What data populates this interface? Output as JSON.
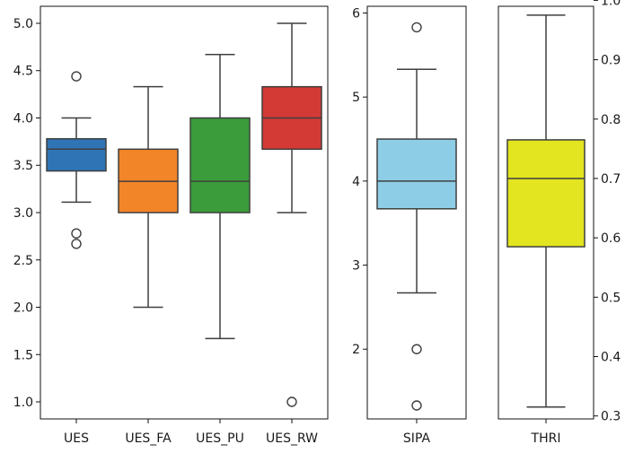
{
  "chart_data": [
    {
      "type": "boxplot",
      "id": "ues",
      "ylim": [
        0.82,
        5.18
      ],
      "yticks": [
        "1.0",
        "1.5",
        "2.0",
        "2.5",
        "3.0",
        "3.5",
        "4.0",
        "4.5",
        "5.0"
      ],
      "ytick_values": [
        1.0,
        1.5,
        2.0,
        2.5,
        3.0,
        3.5,
        4.0,
        4.5,
        5.0
      ],
      "yaxis_side": "left",
      "categories": [
        "UES",
        "UES_FA",
        "UES_PU",
        "UES_RW"
      ],
      "series": [
        {
          "name": "UES",
          "color": "#2f75b5",
          "whisker_low": 3.11,
          "q1": 3.44,
          "median": 3.67,
          "q3": 3.78,
          "whisker_high": 4.0,
          "fliers": [
            4.44,
            2.78,
            2.67
          ]
        },
        {
          "name": "UES_FA",
          "color": "#f28527",
          "whisker_low": 2.0,
          "q1": 3.0,
          "median": 3.33,
          "q3": 3.67,
          "whisker_high": 4.33,
          "fliers": []
        },
        {
          "name": "UES_PU",
          "color": "#3a9c3a",
          "whisker_low": 1.67,
          "q1": 3.0,
          "median": 3.33,
          "q3": 4.0,
          "whisker_high": 4.67,
          "fliers": []
        },
        {
          "name": "UES_RW",
          "color": "#d33a35",
          "whisker_low": 3.0,
          "q1": 3.67,
          "median": 4.0,
          "q3": 4.33,
          "whisker_high": 5.0,
          "fliers": [
            1.0
          ]
        }
      ]
    },
    {
      "type": "boxplot",
      "id": "sipa",
      "ylim": [
        1.17,
        6.08
      ],
      "yticks": [
        "2",
        "3",
        "4",
        "5",
        "6"
      ],
      "ytick_values": [
        2,
        3,
        4,
        5,
        6
      ],
      "yaxis_side": "left",
      "categories": [
        "SIPA"
      ],
      "series": [
        {
          "name": "SIPA",
          "color": "#8ecde6",
          "whisker_low": 2.67,
          "q1": 3.67,
          "median": 4.0,
          "q3": 4.5,
          "whisker_high": 5.33,
          "fliers": [
            5.83,
            2.0,
            1.33
          ]
        }
      ]
    },
    {
      "type": "boxplot",
      "id": "thri",
      "ylim": [
        0.295,
        0.99
      ],
      "yticks": [
        "0.3",
        "0.4",
        "0.5",
        "0.6",
        "0.7",
        "0.8",
        "0.9",
        "1.0"
      ],
      "ytick_values": [
        0.3,
        0.4,
        0.5,
        0.6,
        0.7,
        0.8,
        0.9,
        1.0
      ],
      "yaxis_side": "right",
      "categories": [
        "THRI"
      ],
      "series": [
        {
          "name": "THRI",
          "color": "#e3e520",
          "whisker_low": 0.315,
          "q1": 0.585,
          "median": 0.7,
          "q3": 0.765,
          "whisker_high": 0.975,
          "fliers": []
        }
      ]
    }
  ]
}
